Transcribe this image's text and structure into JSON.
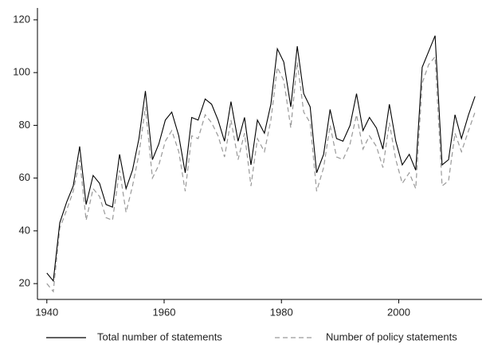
{
  "chart_data": {
    "type": "line",
    "x": [
      1940,
      1941.1,
      1942.2,
      1943.4,
      1944.5,
      1945.6,
      1946.7,
      1947.9,
      1949.0,
      1950.1,
      1951.2,
      1952.4,
      1953.5,
      1954.6,
      1955.7,
      1956.8,
      1958.0,
      1959.1,
      1960.2,
      1961.3,
      1962.5,
      1963.6,
      1964.7,
      1965.8,
      1967.0,
      1968.1,
      1969.2,
      1970.3,
      1971.4,
      1972.6,
      1973.7,
      1974.8,
      1975.9,
      1977.1,
      1978.2,
      1979.3,
      1980.4,
      1981.6,
      1982.7,
      1983.8,
      1984.9,
      1986.0,
      1987.2,
      1988.3,
      1989.4,
      1990.5,
      1991.7,
      1992.8,
      1993.9,
      1995.0,
      1996.2,
      1997.3,
      1998.4,
      1999.5,
      2000.6,
      2001.8,
      2002.9,
      2004.0,
      2005.1,
      2006.2,
      2007.4,
      2008.5,
      2009.6,
      2010.7,
      2011.9,
      2013.0
    ],
    "series": [
      {
        "name": "Total number of statements",
        "color": "#000000",
        "dashed": false,
        "values": [
          24,
          21,
          43,
          51,
          57,
          72,
          50,
          61,
          58,
          50,
          49,
          69,
          56,
          63,
          75,
          93,
          67,
          73,
          82,
          85,
          76,
          62,
          83,
          82,
          90,
          88,
          82,
          74,
          89,
          74,
          83,
          65,
          82,
          77,
          88,
          109,
          104,
          87,
          110,
          92,
          87,
          62,
          69,
          86,
          75,
          74,
          80,
          92,
          78,
          83,
          79,
          71,
          88,
          74,
          65,
          69,
          63,
          102,
          108,
          114,
          65,
          67,
          84,
          75,
          84,
          91
        ]
      },
      {
        "name": "Number of policy statements",
        "color": "#999999",
        "dashed": true,
        "values": [
          20,
          17,
          41,
          48,
          55,
          67,
          44,
          56,
          53,
          45,
          44,
          63,
          47,
          57,
          69,
          87,
          60,
          65,
          74,
          78,
          70,
          55,
          76,
          75,
          84,
          81,
          76,
          68,
          82,
          67,
          77,
          57,
          75,
          70,
          82,
          102,
          97,
          79,
          104,
          85,
          81,
          55,
          64,
          80,
          68,
          67,
          73,
          84,
          71,
          76,
          72,
          64,
          81,
          67,
          58,
          62,
          56,
          96,
          103,
          106,
          57,
          59,
          77,
          70,
          78,
          85
        ]
      }
    ],
    "xlim": [
      1938.4,
      2014.2
    ],
    "xticks": [
      1940,
      1960,
      1980,
      2000
    ],
    "ylim": [
      14,
      124.5
    ],
    "yticks": [
      20,
      40,
      60,
      80,
      100,
      120
    ],
    "grid": false
  }
}
